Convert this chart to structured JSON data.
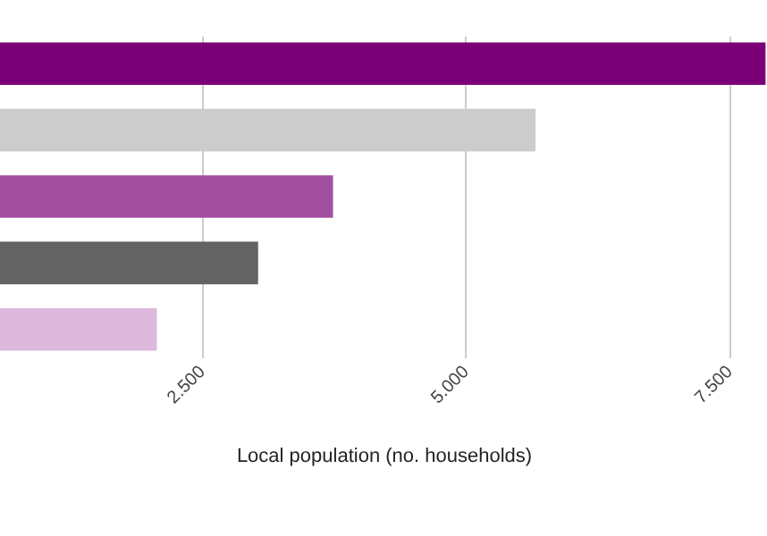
{
  "chart_data": {
    "type": "bar",
    "orientation": "horizontal",
    "xlabel": "Local population (no. households)",
    "categories": [
      null,
      null,
      null,
      null,
      null
    ],
    "values": [
      7850,
      5670,
      3750,
      3040,
      2080
    ],
    "colors": [
      "#7b0077",
      "#cccccc",
      "#a24fa0",
      "#636363",
      "#ddb9dd"
    ],
    "xlim": [
      593,
      7864
    ],
    "xticks": [
      {
        "value": 2500,
        "label": "2.500"
      },
      {
        "value": 5000,
        "label": "5.000"
      },
      {
        "value": 7500,
        "label": "7.500"
      }
    ],
    "grid": "x"
  }
}
